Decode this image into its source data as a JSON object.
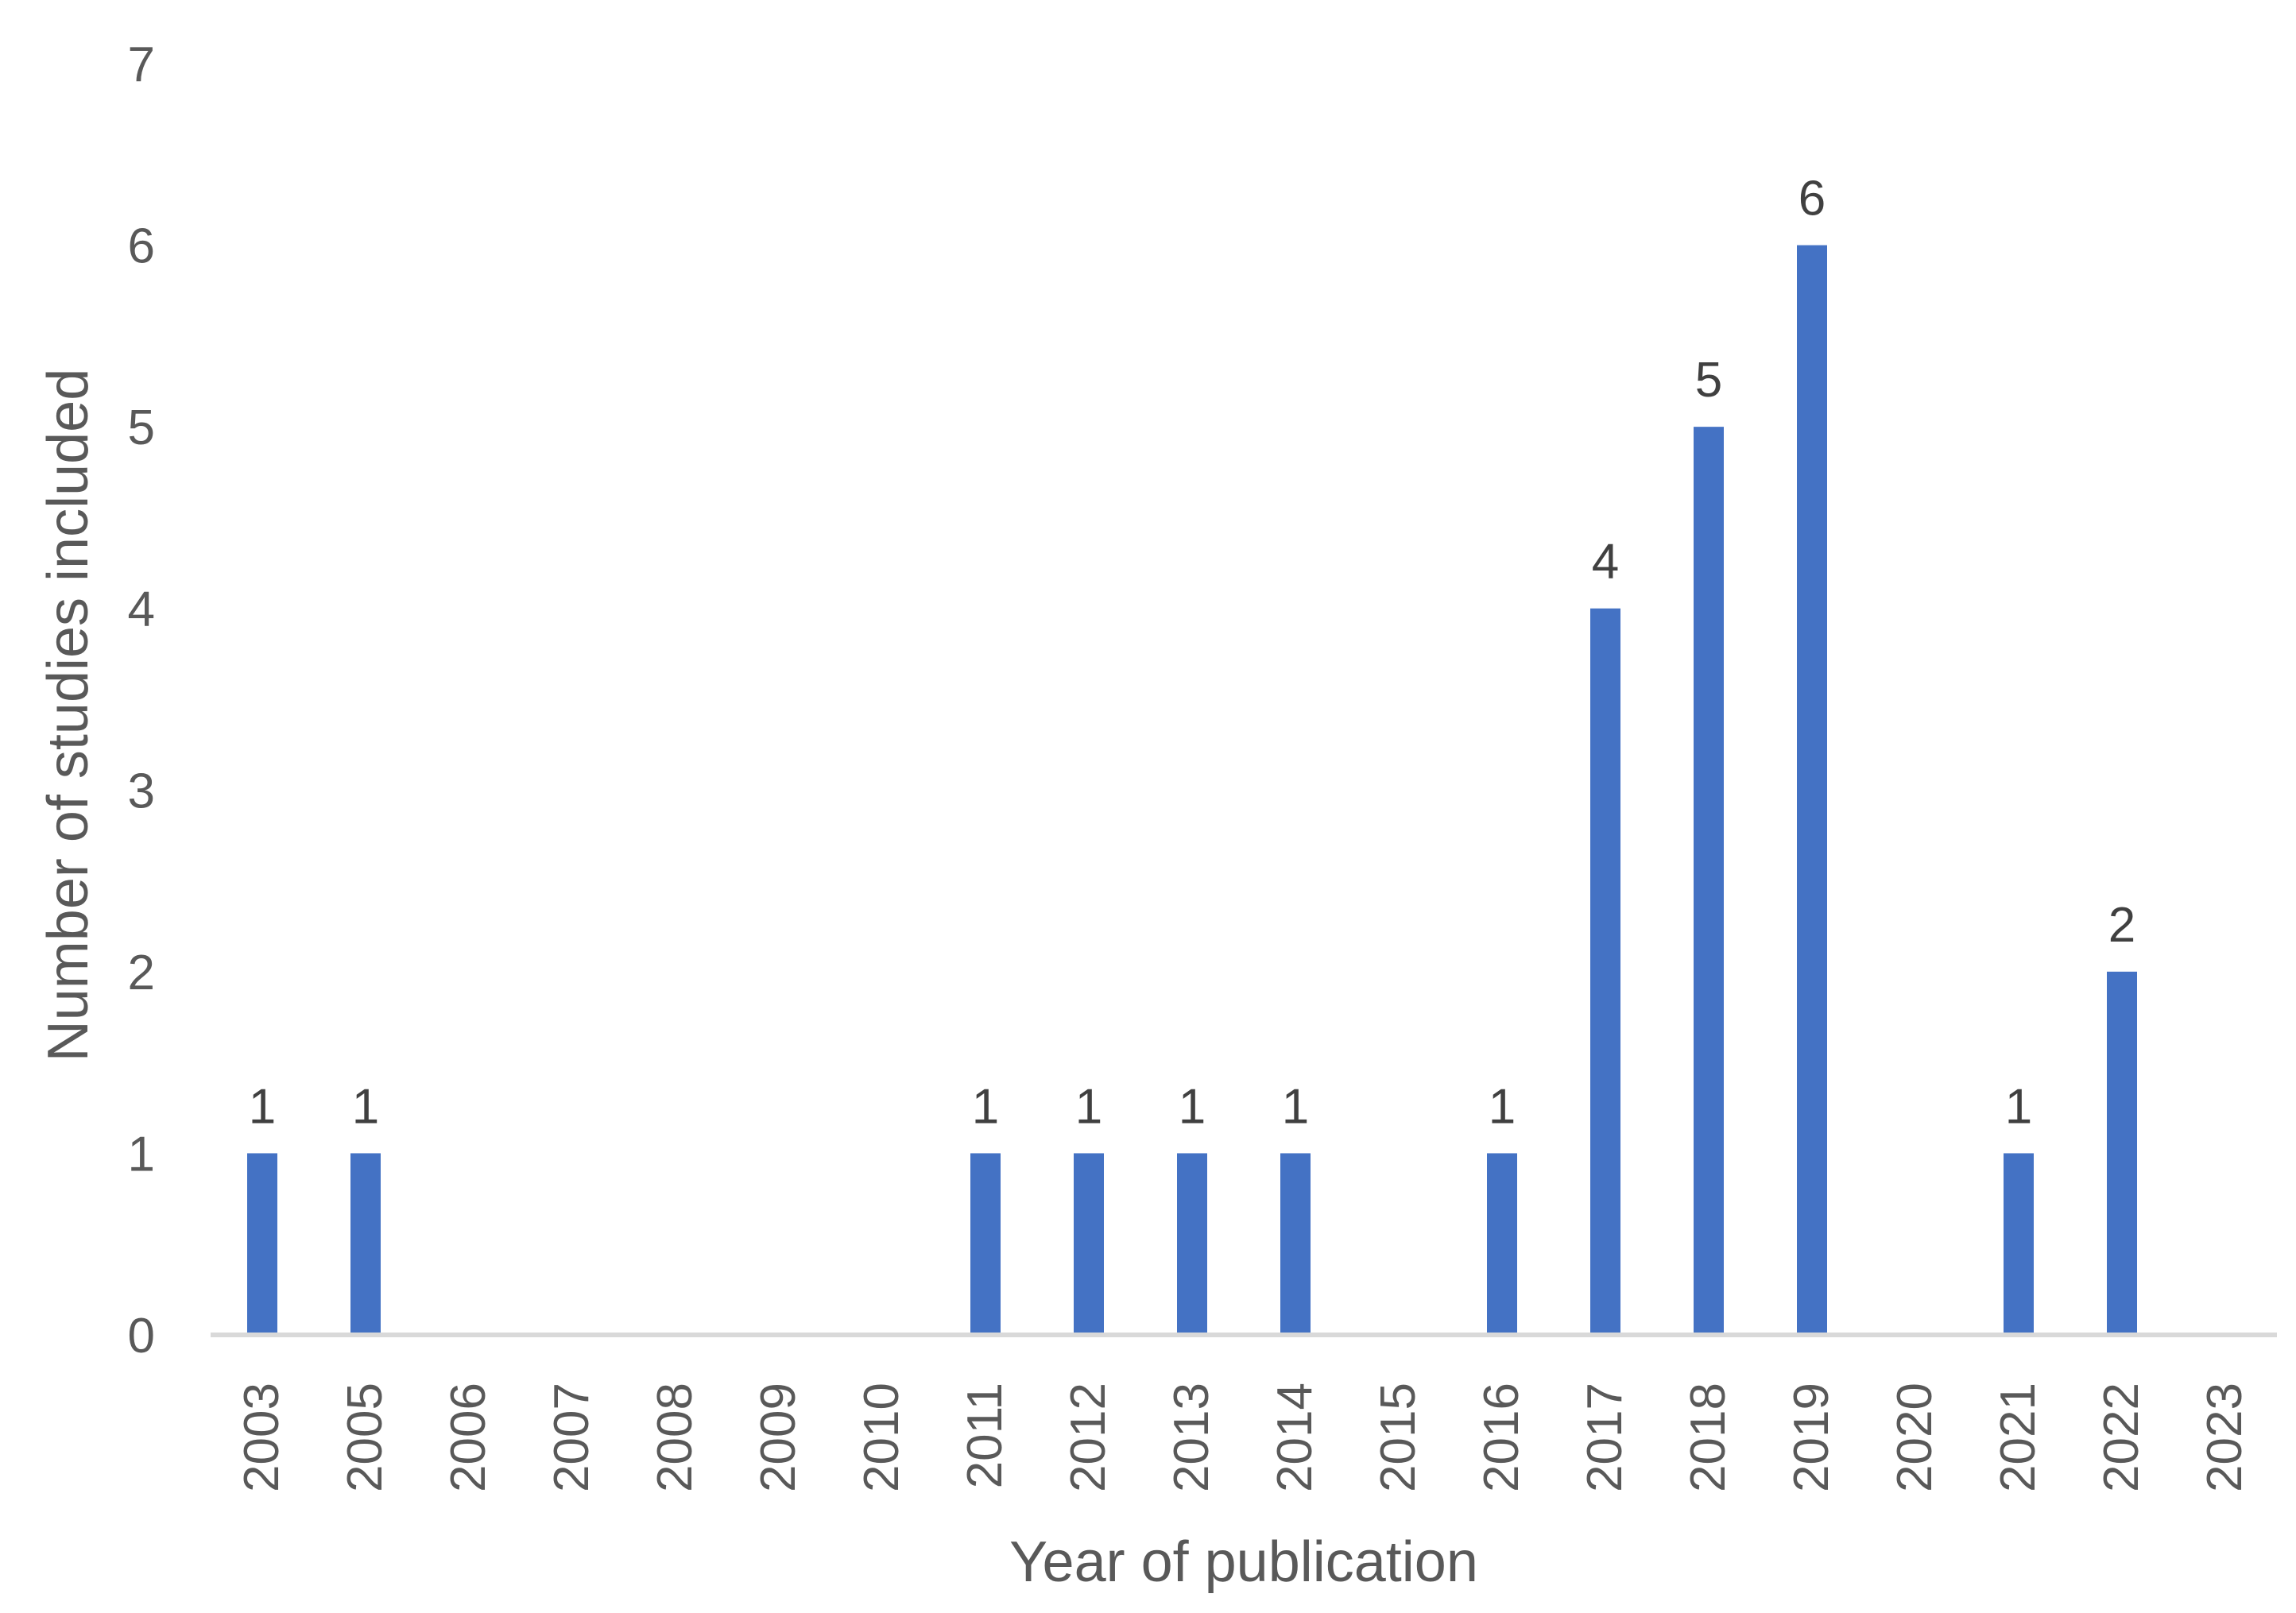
{
  "chart_data": {
    "type": "bar",
    "title": "",
    "xlabel": "Year of publication",
    "ylabel": "Number of studies included",
    "categories": [
      "2003",
      "2005",
      "2006",
      "2007",
      "2008",
      "2009",
      "2010",
      "2011",
      "2012",
      "2013",
      "2014",
      "2015",
      "2016",
      "2017",
      "2018",
      "2019",
      "2020",
      "2021",
      "2022",
      "2023"
    ],
    "values": [
      1,
      1,
      0,
      0,
      0,
      0,
      0,
      1,
      1,
      1,
      1,
      0,
      1,
      4,
      5,
      6,
      0,
      1,
      2,
      0
    ],
    "ylim": [
      0,
      7
    ],
    "yticks": [
      "0",
      "1",
      "2",
      "3",
      "4",
      "5",
      "6",
      "7"
    ],
    "grid": false,
    "legend": "none",
    "colors": {
      "bar": "#4472C4",
      "axis": "#D9D9D9"
    }
  }
}
